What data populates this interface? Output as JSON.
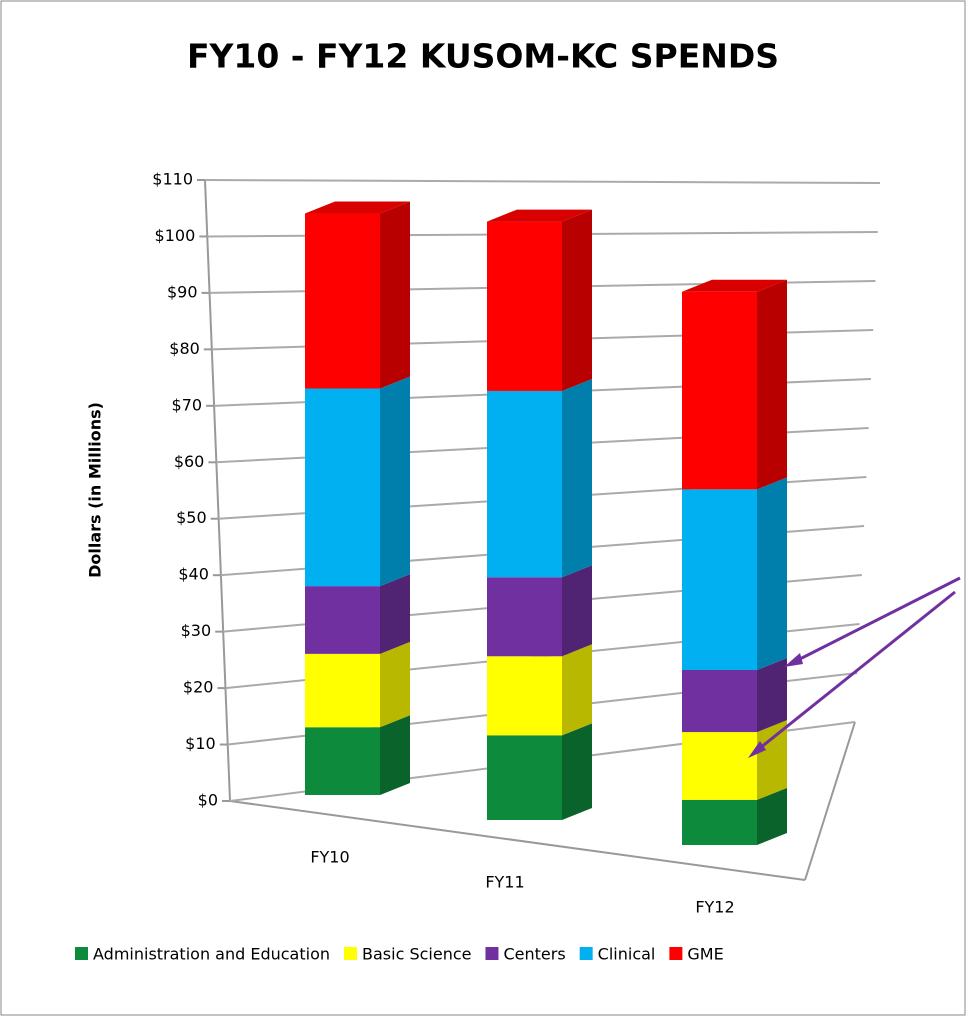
{
  "chart_data": {
    "type": "bar3d_stacked",
    "title": "FY10 - FY12 KUSOM-KC SPENDS",
    "y_label": "Dollars (in Millions)",
    "categories": [
      "FY10",
      "FY11",
      "FY12"
    ],
    "series": [
      {
        "name": "Administration and Education",
        "color": "#0e8a3c",
        "values": [
          12,
          15,
          8
        ]
      },
      {
        "name": "Basic Science",
        "color": "#ffff00",
        "values": [
          13,
          14,
          12
        ]
      },
      {
        "name": "Centers",
        "color": "#7030a0",
        "values": [
          12,
          14,
          11
        ]
      },
      {
        "name": "Clinical",
        "color": "#00b0f0",
        "values": [
          35,
          33,
          32
        ]
      },
      {
        "name": "GME",
        "color": "#ff0000",
        "values": [
          31,
          30,
          35
        ]
      }
    ],
    "ylim": [
      0,
      110
    ],
    "yticks": [
      {
        "value": 0,
        "label": "$0"
      },
      {
        "value": 10,
        "label": "$10"
      },
      {
        "value": 20,
        "label": "$20"
      },
      {
        "value": 30,
        "label": "$30"
      },
      {
        "value": 40,
        "label": "$40"
      },
      {
        "value": 50,
        "label": "$50"
      },
      {
        "value": 60,
        "label": "$60"
      },
      {
        "value": 70,
        "label": "$70"
      },
      {
        "value": 80,
        "label": "$80"
      },
      {
        "value": 90,
        "label": "$90"
      },
      {
        "value": 100,
        "label": "$100"
      },
      {
        "value": 110,
        "label": "$110"
      }
    ],
    "grid": true,
    "legend": "bottom"
  }
}
